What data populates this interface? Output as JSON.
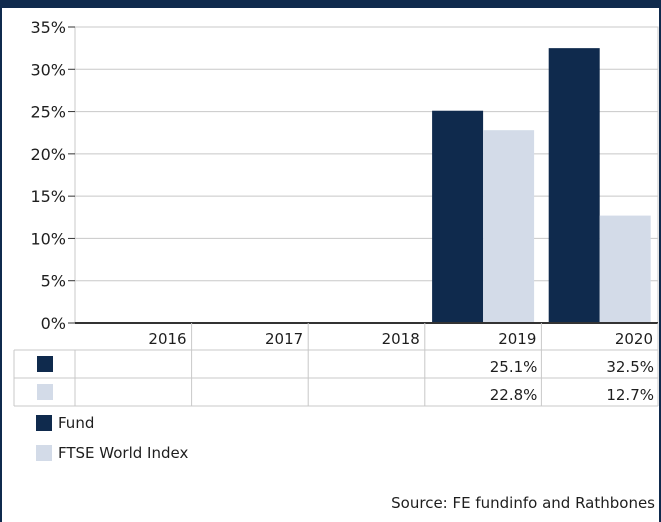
{
  "colors": {
    "frame": "#0f2a4d",
    "fund": "#0f2a4d",
    "index": "#d3dbe8",
    "grid": "#c8c8c8"
  },
  "chart_data": {
    "type": "bar",
    "categories": [
      "2016",
      "2017",
      "2018",
      "2019",
      "2020"
    ],
    "series": [
      {
        "name": "Fund",
        "values": [
          null,
          null,
          null,
          25.1,
          32.5
        ]
      },
      {
        "name": "FTSE World Index",
        "values": [
          null,
          null,
          null,
          22.8,
          12.7
        ]
      }
    ],
    "ylim": [
      0,
      35
    ],
    "yticks": [
      "0%",
      "5%",
      "10%",
      "15%",
      "20%",
      "25%",
      "30%",
      "35%"
    ],
    "table_rows": [
      [
        "",
        "",
        "",
        "25.1%",
        "32.5%"
      ],
      [
        "",
        "",
        "",
        "22.8%",
        "12.7%"
      ]
    ],
    "legend": [
      "Fund",
      "FTSE World Index"
    ],
    "grid": true
  },
  "source": "Source: FE fundinfo and Rathbones"
}
